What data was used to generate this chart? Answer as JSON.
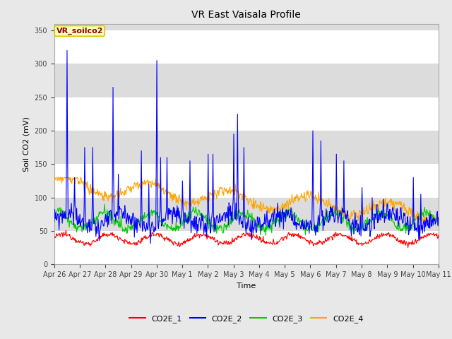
{
  "title": "VR East Vaisala Profile",
  "xlabel": "Time",
  "ylabel": "Soil CO2 (mV)",
  "ylim": [
    0,
    360
  ],
  "yticks": [
    0,
    50,
    100,
    150,
    200,
    250,
    300,
    350
  ],
  "annotation": "VR_soilco2",
  "annotation_color": "#8B0000",
  "annotation_bg": "#FFFFC0",
  "annotation_edge": "#CCCC00",
  "fig_bg": "#E8E8E8",
  "plot_bg": "#FFFFFF",
  "band_color": "#DCDCDC",
  "line_colors": {
    "CO2E_1": "#FF0000",
    "CO2E_2": "#0000FF",
    "CO2E_3": "#00CC00",
    "CO2E_4": "#FFA500"
  },
  "x_tick_labels": [
    "Apr 26",
    "Apr 27",
    "Apr 28",
    "Apr 29",
    "Apr 30",
    "May 1",
    "May 2",
    "May 3",
    "May 4",
    "May 5",
    "May 6",
    "May 7",
    "May 8",
    "May 9",
    "May 10",
    "May 11"
  ],
  "n_points": 720
}
